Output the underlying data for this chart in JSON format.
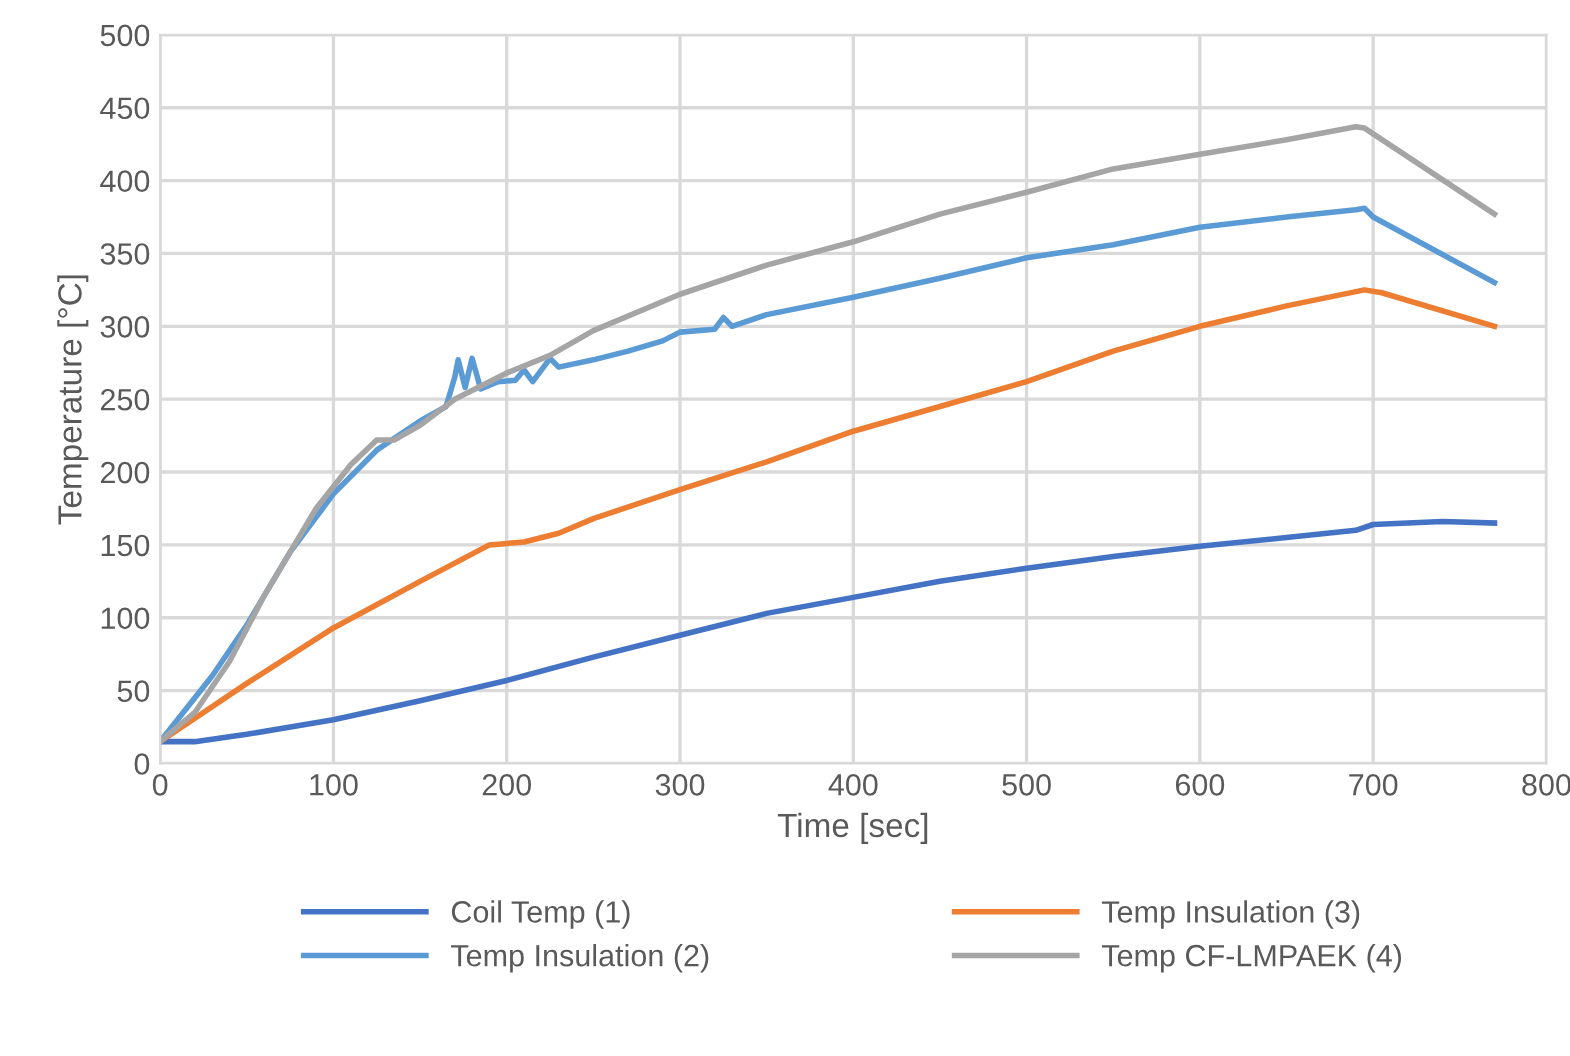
{
  "chart_data": {
    "type": "line",
    "xlabel": "Time [sec]",
    "ylabel": "Temperature [°C]",
    "xlim": [
      0,
      800
    ],
    "xticks": [
      0,
      100,
      200,
      300,
      400,
      500,
      600,
      700,
      800
    ],
    "ylim": [
      0,
      500
    ],
    "yticks": [
      0,
      50,
      100,
      150,
      200,
      250,
      300,
      350,
      400,
      450,
      500
    ],
    "grid": true,
    "legend": "bottom",
    "marker": "none",
    "line_style": "solid",
    "series": [
      {
        "name": "Coil Temp (1)",
        "color": "#4472c4",
        "x": [
          0,
          20,
          50,
          100,
          150,
          200,
          250,
          300,
          350,
          400,
          450,
          500,
          550,
          600,
          650,
          690,
          700,
          740,
          770
        ],
        "values": [
          15,
          15,
          20,
          30,
          43,
          57,
          73,
          88,
          103,
          114,
          125,
          134,
          142,
          149,
          155,
          160,
          164,
          166,
          165
        ]
      },
      {
        "name": "Temp Insulation (2)",
        "color": "#5b9bd5",
        "x": [
          0,
          10,
          30,
          50,
          75,
          100,
          125,
          150,
          165,
          170,
          172,
          176,
          180,
          185,
          195,
          205,
          210,
          215,
          225,
          230,
          250,
          270,
          290,
          300,
          320,
          325,
          330,
          350,
          400,
          450,
          500,
          550,
          600,
          650,
          690,
          695,
          700,
          770
        ],
        "values": [
          15,
          30,
          60,
          95,
          145,
          185,
          215,
          235,
          245,
          265,
          277,
          258,
          278,
          257,
          262,
          263,
          270,
          262,
          278,
          272,
          277,
          283,
          290,
          296,
          298,
          306,
          300,
          308,
          320,
          333,
          347,
          356,
          368,
          375,
          380,
          381,
          375,
          330
        ]
      },
      {
        "name": "Temp Insulation (3)",
        "color": "#ed7d31",
        "x": [
          0,
          50,
          100,
          150,
          190,
          210,
          230,
          250,
          300,
          350,
          400,
          450,
          500,
          550,
          600,
          650,
          695,
          705,
          770
        ],
        "values": [
          15,
          55,
          93,
          125,
          150,
          152,
          158,
          168,
          188,
          207,
          228,
          245,
          262,
          283,
          300,
          314,
          325,
          323,
          300
        ]
      },
      {
        "name": "Temp CF-LMPAEK (4)",
        "color": "#a5a5a5",
        "x": [
          0,
          20,
          40,
          60,
          90,
          110,
          125,
          135,
          150,
          170,
          200,
          225,
          250,
          300,
          350,
          400,
          450,
          500,
          550,
          600,
          650,
          690,
          695,
          770
        ],
        "values": [
          15,
          35,
          70,
          115,
          175,
          205,
          222,
          222,
          232,
          250,
          268,
          280,
          297,
          322,
          342,
          358,
          377,
          392,
          408,
          418,
          428,
          437,
          436,
          377
        ]
      }
    ]
  }
}
